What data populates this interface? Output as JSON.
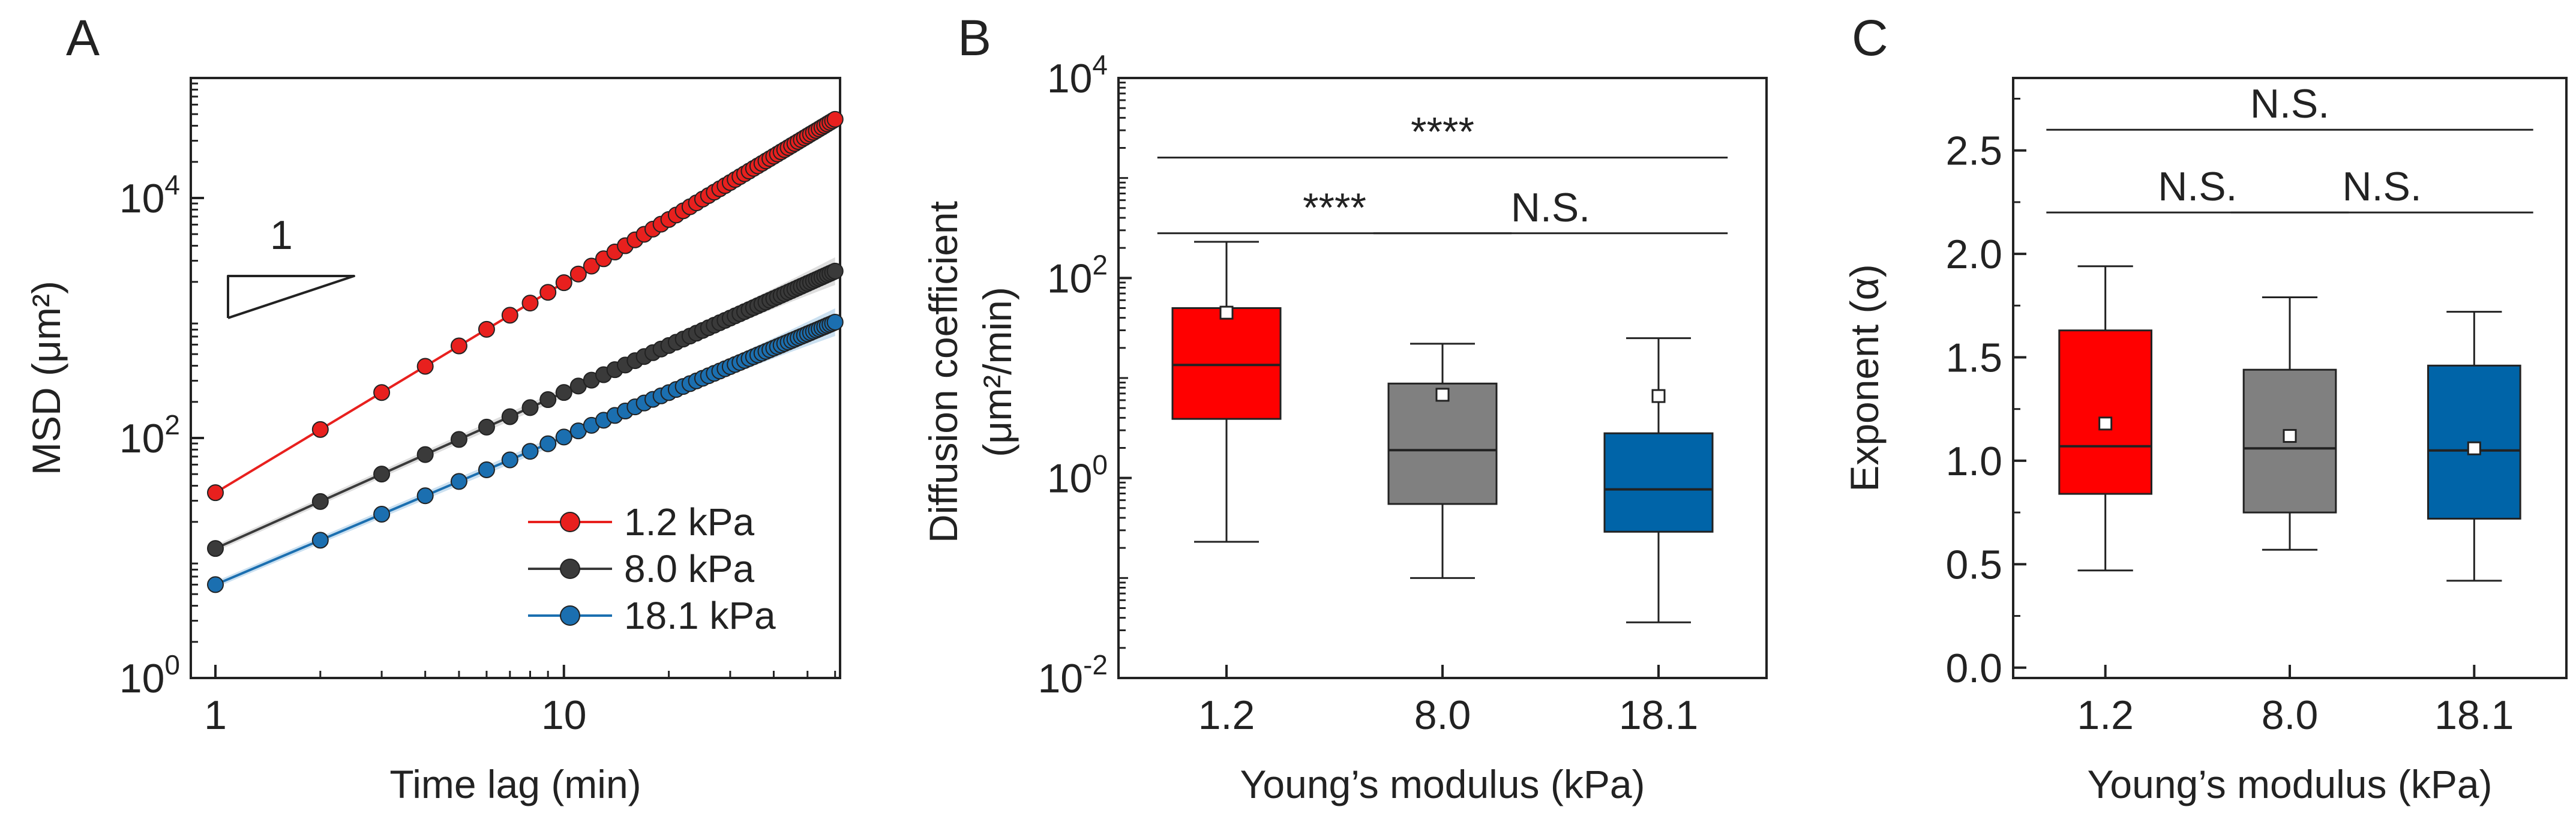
{
  "chart_data": [
    {
      "panel": "A",
      "type": "line",
      "xlabel": "Time lag (min)",
      "ylabel": "MSD (μm²)",
      "xscale": "log",
      "yscale": "log",
      "xlim": [
        0.85,
        62
      ],
      "ylim": [
        1,
        100000
      ],
      "xticks": [
        1,
        10
      ],
      "xtick_labels": [
        "1",
        "10"
      ],
      "yticks": [
        1,
        100,
        10000
      ],
      "ytick_labels": [
        {
          "base": "10",
          "exp": "0"
        },
        {
          "base": "10",
          "exp": "2"
        },
        {
          "base": "10",
          "exp": "4"
        }
      ],
      "slope_annotation": "1",
      "legend_position": "bottom-right",
      "x": [
        1,
        2,
        3,
        4,
        5,
        6,
        7,
        8,
        9,
        10,
        11,
        12,
        13,
        14,
        15,
        16,
        17,
        18,
        19,
        20,
        21,
        22,
        23,
        24,
        25,
        26,
        27,
        28,
        29,
        30,
        31,
        32,
        33,
        34,
        35,
        36,
        37,
        38,
        39,
        40,
        41,
        42,
        43,
        44,
        45,
        46,
        47,
        48,
        49,
        50,
        51,
        52,
        53,
        54,
        55,
        56,
        57,
        58,
        59,
        60
      ],
      "series": [
        {
          "name": "1.2 kPa",
          "color": "#e8201e",
          "y0": 35,
          "slope": 1.75
        },
        {
          "name": "8.0 kPa",
          "color": "#3a3a3a",
          "y0": 12,
          "slope": 1.3
        },
        {
          "name": "18.1 kPa",
          "color": "#1b6fb0",
          "y0": 6,
          "slope": 1.23
        }
      ]
    },
    {
      "panel": "B",
      "type": "box",
      "xlabel": "Young’s modulus (kPa)",
      "ylabel_line1": "Diffusion coefficient",
      "ylabel_line2": "(μm²/min)",
      "yscale": "log",
      "ylim": [
        0.01,
        10000
      ],
      "yticks": [
        0.01,
        1,
        100,
        10000
      ],
      "ytick_labels": [
        {
          "base": "10",
          "exp": "-2"
        },
        {
          "base": "10",
          "exp": "0"
        },
        {
          "base": "10",
          "exp": "2"
        },
        {
          "base": "10",
          "exp": "4"
        }
      ],
      "categories": [
        "1.2",
        "8.0",
        "18.1"
      ],
      "boxes": [
        {
          "color": "#ff0000",
          "whisker_low": 0.23,
          "q1": 3.9,
          "median": 13.5,
          "q3": 50,
          "whisker_high": 230,
          "mean": 45
        },
        {
          "color": "#808080",
          "whisker_low": 0.1,
          "q1": 0.55,
          "median": 1.9,
          "q3": 8.8,
          "whisker_high": 22,
          "mean": 6.8
        },
        {
          "color": "#0064a8",
          "whisker_low": 0.036,
          "q1": 0.29,
          "median": 0.77,
          "q3": 2.8,
          "whisker_high": 25,
          "mean": 6.6
        }
      ],
      "significance": [
        {
          "from": 0,
          "to": 2,
          "y": 1600,
          "label": "****"
        },
        {
          "from": 0,
          "to": 1,
          "y": 280,
          "label": "****"
        },
        {
          "from": 1,
          "to": 2,
          "y": 280,
          "label": "N.S."
        }
      ]
    },
    {
      "panel": "C",
      "type": "box",
      "xlabel": "Young’s modulus (kPa)",
      "ylabel": "Exponent (α)",
      "ylim": [
        -0.05,
        2.85
      ],
      "yticks": [
        0.0,
        0.5,
        1.0,
        1.5,
        2.0,
        2.5
      ],
      "ytick_labels": [
        "0.0",
        "0.5",
        "1.0",
        "1.5",
        "2.0",
        "2.5"
      ],
      "categories": [
        "1.2",
        "8.0",
        "18.1"
      ],
      "boxes": [
        {
          "color": "#ff0000",
          "whisker_low": 0.47,
          "q1": 0.84,
          "median": 1.07,
          "q3": 1.63,
          "whisker_high": 1.94,
          "mean": 1.18
        },
        {
          "color": "#808080",
          "whisker_low": 0.57,
          "q1": 0.75,
          "median": 1.06,
          "q3": 1.44,
          "whisker_high": 1.79,
          "mean": 1.12
        },
        {
          "color": "#0064a8",
          "whisker_low": 0.42,
          "q1": 0.72,
          "median": 1.05,
          "q3": 1.46,
          "whisker_high": 1.72,
          "mean": 1.06
        }
      ],
      "significance": [
        {
          "from": 0,
          "to": 2,
          "y": 2.6,
          "label": "N.S."
        },
        {
          "from": 0,
          "to": 1,
          "y": 2.2,
          "label": "N.S."
        },
        {
          "from": 1,
          "to": 2,
          "y": 2.2,
          "label": "N.S."
        }
      ]
    }
  ]
}
